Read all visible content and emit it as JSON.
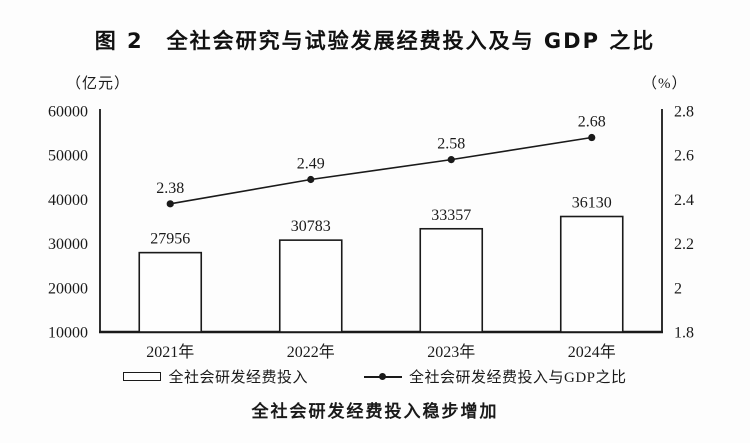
{
  "title": "图 2　全社会研究与试验发展经费投入及与 GDP 之比",
  "left_axis_unit": "（亿元）",
  "right_axis_unit": "（%）",
  "legend": {
    "bar_label": "全社会研发经费投入",
    "line_label": "全社会研发经费投入与GDP之比"
  },
  "caption": "全社会研发经费投入稳步增加",
  "colors": {
    "ink": "#1a1a1a",
    "bar_fill": "#fefefe",
    "background": "#fdfdfd"
  },
  "chart_data": {
    "type": "bar+line",
    "categories": [
      "2021年",
      "2022年",
      "2023年",
      "2024年"
    ],
    "series": [
      {
        "name": "全社会研发经费投入",
        "type": "bar",
        "axis": "left",
        "values": [
          27956,
          30783,
          33357,
          36130
        ],
        "value_labels": [
          "27956",
          "30783",
          "33357",
          "36130"
        ]
      },
      {
        "name": "全社会研发经费投入与GDP之比",
        "type": "line",
        "axis": "right",
        "values": [
          2.38,
          2.49,
          2.58,
          2.68
        ],
        "value_labels": [
          "2.38",
          "2.49",
          "2.58",
          "2.68"
        ]
      }
    ],
    "left_axis": {
      "unit": "亿元",
      "min": 10000,
      "max": 60000,
      "ticks": [
        10000,
        20000,
        30000,
        40000,
        50000,
        60000
      ],
      "tick_labels": [
        "10000",
        "20000",
        "30000",
        "40000",
        "50000",
        "60000"
      ]
    },
    "right_axis": {
      "unit": "%",
      "min": 1.8,
      "max": 2.8,
      "ticks": [
        1.8,
        2.0,
        2.2,
        2.4,
        2.6,
        2.8
      ],
      "tick_labels": [
        "1.8",
        "2",
        "2.2",
        "2.4",
        "2.6",
        "2.8"
      ]
    },
    "grid": false,
    "legend_position": "bottom",
    "title": "图 2　全社会研究与试验发展经费投入及与 GDP 之比",
    "subtitle_caption": "全社会研发经费投入稳步增加"
  }
}
